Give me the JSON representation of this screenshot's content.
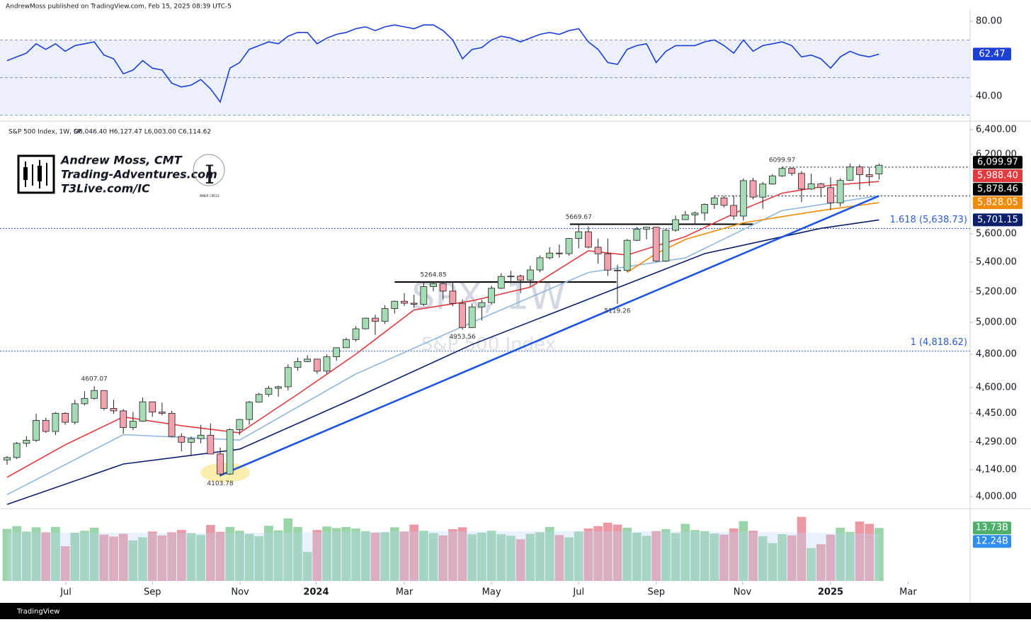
{
  "header": {
    "publisher": "AndrewMoss published on TradingView.com, Feb 15, 2025 08:39 UTC-5",
    "footer": "TradingView",
    "logo": {
      "name": "Andrew Moss, CMT",
      "site": "Trading-Adventures.com",
      "site2": "T3Live.com/IC",
      "badge": "INNER CIRCLE"
    }
  },
  "chart_data": [
    {
      "type": "line",
      "pane": "rsi",
      "xlim": [
        -0.73,
        99.4
      ],
      "ylim": [
        27.2,
        86
      ],
      "log": false,
      "yticks": [
        {
          "value": 80,
          "label": "80.00"
        },
        {
          "value": 40,
          "label": "40.00"
        }
      ],
      "levels": [
        70,
        50,
        30
      ],
      "band": [
        30,
        70
      ],
      "series": [
        {
          "color": "#1c3fd6",
          "values": [
            59,
            61,
            63,
            68,
            65,
            68,
            64,
            67,
            68,
            69,
            62,
            60,
            52,
            54,
            59,
            55,
            54,
            47,
            45,
            46,
            49,
            44,
            37,
            55,
            58,
            65,
            67,
            69,
            68,
            72,
            74,
            74,
            68,
            71,
            73,
            74,
            76,
            77,
            75,
            77,
            78,
            77,
            76,
            78,
            78,
            75,
            70,
            60,
            65,
            66,
            70,
            72,
            71,
            69,
            71,
            73,
            74,
            73,
            75,
            76,
            69,
            65,
            58,
            57,
            65,
            67,
            68,
            58,
            64,
            67,
            67,
            67,
            69,
            70,
            67,
            63,
            70,
            64,
            67,
            68,
            69,
            67,
            61,
            62,
            60,
            55,
            61,
            64,
            62,
            61,
            62.47
          ],
          "last_label": "62.47"
        }
      ]
    },
    {
      "type": "candlestick",
      "pane": "price",
      "log": true,
      "xlim": [
        -0.73,
        99.4
      ],
      "ylim": [
        3942,
        6464
      ],
      "legend": "S&P 500 Index, 1W, SP",
      "ohlc_text": "O6,046.40  H6,127.47  L6,003.00  C6,114.62",
      "watermark": "SPX, 1W",
      "watermark_subtitle": "S&P 500 Index",
      "up_color": "#a6dcb5",
      "down_color": "#f3a1ad",
      "yticks": [
        {
          "value": 4000,
          "label": "4,000.00"
        },
        {
          "value": 4140,
          "label": "4,140.00"
        },
        {
          "value": 4290,
          "label": "4,290.00"
        },
        {
          "value": 4450,
          "label": "4,450.00"
        },
        {
          "value": 4600,
          "label": "4,600.00"
        },
        {
          "value": 4800,
          "label": "4,800.00"
        },
        {
          "value": 5000,
          "label": "5,000.00"
        },
        {
          "value": 5200,
          "label": "5,200.00"
        },
        {
          "value": 5400,
          "label": "5,400.00"
        },
        {
          "value": 5600,
          "label": "5,600.00"
        },
        {
          "value": 6200,
          "label": "6,200.00"
        },
        {
          "value": 6400,
          "label": "6,400.00"
        }
      ],
      "candles": [
        [
          4192,
          4212,
          4166,
          4205
        ],
        [
          4205,
          4290,
          4196,
          4282
        ],
        [
          4282,
          4322,
          4263,
          4299
        ],
        [
          4299,
          4448,
          4290,
          4410
        ],
        [
          4410,
          4425,
          4340,
          4348
        ],
        [
          4348,
          4458,
          4328,
          4450
        ],
        [
          4450,
          4456,
          4385,
          4399
        ],
        [
          4399,
          4527,
          4387,
          4505
        ],
        [
          4505,
          4578,
          4495,
          4536
        ],
        [
          4536,
          4607.07,
          4528,
          4582
        ],
        [
          4582,
          4584,
          4467,
          4478
        ],
        [
          4478,
          4528,
          4447,
          4464
        ],
        [
          4464,
          4474,
          4335,
          4370
        ],
        [
          4370,
          4458,
          4356,
          4405
        ],
        [
          4405,
          4541,
          4402,
          4516
        ],
        [
          4516,
          4518,
          4430,
          4457
        ],
        [
          4457,
          4511,
          4439,
          4450
        ],
        [
          4450,
          4465,
          4316,
          4320
        ],
        [
          4320,
          4338,
          4238,
          4288
        ],
        [
          4288,
          4320,
          4216,
          4308
        ],
        [
          4308,
          4385,
          4283,
          4327
        ],
        [
          4327,
          4393,
          4223,
          4224
        ],
        [
          4224,
          4259,
          4103.78,
          4117
        ],
        [
          4117,
          4365,
          4113,
          4358
        ],
        [
          4358,
          4418,
          4329,
          4415
        ],
        [
          4415,
          4521,
          4385,
          4514
        ],
        [
          4514,
          4568,
          4511,
          4559
        ],
        [
          4559,
          4609,
          4546,
          4595
        ],
        [
          4595,
          4610,
          4546,
          4604
        ],
        [
          4604,
          4738,
          4582,
          4719
        ],
        [
          4719,
          4778,
          4699,
          4755
        ],
        [
          4755,
          4794,
          4751,
          4770
        ],
        [
          4770,
          4772,
          4682,
          4697
        ],
        [
          4697,
          4798,
          4682,
          4784
        ],
        [
          4784,
          4842,
          4760,
          4840
        ],
        [
          4840,
          4903,
          4841,
          4891
        ],
        [
          4891,
          4976,
          4878,
          4959
        ],
        [
          4959,
          5030,
          4955,
          5027
        ],
        [
          5027,
          5049,
          4920,
          5006
        ],
        [
          5006,
          5111,
          4990,
          5089
        ],
        [
          5089,
          5141,
          5056,
          5137
        ],
        [
          5137,
          5190,
          5105,
          5124
        ],
        [
          5124,
          5180,
          5094,
          5117
        ],
        [
          5117,
          5262,
          5105,
          5234
        ],
        [
          5234,
          5264.85,
          5203,
          5254
        ],
        [
          5254,
          5263,
          5147,
          5204
        ],
        [
          5204,
          5263,
          5104,
          5123
        ],
        [
          5123,
          5149,
          4953.56,
          4967
        ],
        [
          4967,
          5123,
          4963,
          5100
        ],
        [
          5100,
          5146,
          5011,
          5128
        ],
        [
          5128,
          5240,
          5114,
          5223
        ],
        [
          5223,
          5325,
          5218,
          5303
        ],
        [
          5303,
          5341,
          5257,
          5305
        ],
        [
          5305,
          5315,
          5191,
          5278
        ],
        [
          5278,
          5375,
          5234,
          5347
        ],
        [
          5347,
          5447,
          5331,
          5431
        ],
        [
          5431,
          5505,
          5420,
          5464
        ],
        [
          5464,
          5524,
          5432,
          5460
        ],
        [
          5460,
          5570,
          5446,
          5567
        ],
        [
          5567,
          5669.67,
          5497,
          5615
        ],
        [
          5615,
          5655,
          5497,
          5505
        ],
        [
          5505,
          5566,
          5390,
          5459
        ],
        [
          5459,
          5567,
          5306,
          5346
        ],
        [
          5346,
          5383,
          5119.26,
          5344
        ],
        [
          5344,
          5563,
          5333,
          5554
        ],
        [
          5554,
          5651,
          5549,
          5634
        ],
        [
          5634,
          5651,
          5560,
          5648
        ],
        [
          5648,
          5651,
          5403,
          5408
        ],
        [
          5408,
          5636,
          5402,
          5626
        ],
        [
          5626,
          5733,
          5615,
          5703
        ],
        [
          5703,
          5767,
          5701,
          5738
        ],
        [
          5738,
          5762,
          5674,
          5751
        ],
        [
          5751,
          5823,
          5696,
          5815
        ],
        [
          5815,
          5878,
          5782,
          5864
        ],
        [
          5864,
          5879,
          5794,
          5808
        ],
        [
          5808,
          5882,
          5703,
          5729
        ],
        [
          5729,
          6012,
          5696,
          5995
        ],
        [
          5995,
          6017,
          5853,
          5870
        ],
        [
          5870,
          5985,
          5783,
          5969
        ],
        [
          5969,
          6044,
          5964,
          6032
        ],
        [
          6032,
          6099.97,
          6024,
          6090
        ],
        [
          6090,
          6098,
          6033,
          6051
        ],
        [
          6051,
          6070,
          5832,
          5931
        ],
        [
          5931,
          6049,
          5924,
          5970
        ],
        [
          5970,
          5978,
          5869,
          5942
        ],
        [
          5942,
          6021,
          5773,
          5827
        ],
        [
          5827,
          6014,
          5800,
          5997
        ],
        [
          5997,
          6128,
          5993,
          6101
        ],
        [
          6101,
          6120,
          5923,
          6041
        ],
        [
          6041,
          6101,
          5955,
          6026
        ],
        [
          6046.4,
          6127.47,
          6003,
          6114.62
        ]
      ],
      "series": [
        {
          "color": "#e03a3e",
          "x": [
            0,
            6,
            12,
            18,
            24,
            30,
            36,
            42,
            48,
            54,
            60,
            64,
            70,
            76,
            80,
            85,
            90
          ],
          "values": [
            4100,
            4274,
            4430,
            4380,
            4340,
            4560,
            4800,
            5080,
            5140,
            5230,
            5480,
            5450,
            5580,
            5780,
            5900,
            5960,
            5988.4
          ],
          "last_label": "5,988.40"
        },
        {
          "color": "#8fb8dc",
          "x": [
            0,
            12,
            24,
            36,
            48,
            60,
            70,
            80,
            90
          ],
          "values": [
            4010,
            4330,
            4300,
            4680,
            5000,
            5330,
            5430,
            5770,
            5880
          ]
        },
        {
          "color": "#0c1f6b",
          "x": [
            0,
            12,
            24,
            36,
            48,
            60,
            72,
            84,
            90
          ],
          "values": [
            3960,
            4170,
            4250,
            4540,
            4860,
            5150,
            5460,
            5640,
            5701.15
          ],
          "last_label": "5,701.15"
        },
        {
          "color": "#f08c0a",
          "x": [
            64,
            67,
            70,
            76,
            84,
            90
          ],
          "values": [
            5330,
            5460,
            5560,
            5680,
            5770,
            5828.05
          ],
          "last_label": "5,828.05"
        },
        {
          "color": "#1e55e0",
          "x": [
            22,
            90
          ],
          "values": [
            4110,
            5878.46
          ],
          "last_label": "5,878.46"
        }
      ],
      "levels": [
        {
          "value": 6099.97,
          "label": "6,099.97",
          "from": 80
        },
        {
          "value": 5878.46,
          "from": 73
        }
      ],
      "resistance": [
        {
          "value": 5669.67,
          "from": 58.1,
          "to": 77
        },
        {
          "value": 5264.85,
          "from": 40,
          "to": 62.9
        }
      ],
      "fib": [
        {
          "value": 5638.73,
          "label": "1.618 (5,638.73)"
        },
        {
          "value": 4818.62,
          "label": "1 (4,818.62)"
        }
      ],
      "annotations": [
        {
          "value": 6099.97,
          "x": 80,
          "place": "above"
        },
        {
          "value": 5669.67,
          "x": 59,
          "place": "above"
        },
        {
          "value": 5264.85,
          "x": 44,
          "place": "above"
        },
        {
          "value": 5119.26,
          "x": 63,
          "place": "below"
        },
        {
          "value": 4953.56,
          "x": 47,
          "place": "below"
        },
        {
          "value": 4607.07,
          "x": 9,
          "place": "above"
        },
        {
          "value": 4103.78,
          "x": 22,
          "place": "below"
        }
      ]
    },
    {
      "type": "bar",
      "pane": "volume",
      "xlim": [
        -0.73,
        99.4
      ],
      "ylim": [
        0,
        18
      ],
      "xticks": [
        {
          "value": 6.07,
          "label": "Jul"
        },
        {
          "value": 15,
          "label": "Sep"
        },
        {
          "value": 24.05,
          "label": "Nov"
        },
        {
          "value": 31.9,
          "label": "2024"
        },
        {
          "value": 41,
          "label": "Mar"
        },
        {
          "value": 50,
          "label": "May"
        },
        {
          "value": 59,
          "label": "Jul"
        },
        {
          "value": 67,
          "label": "Sep"
        },
        {
          "value": 75.9,
          "label": "Nov"
        },
        {
          "value": 85,
          "label": "2025"
        },
        {
          "value": 93,
          "label": "Mar"
        }
      ],
      "values": [
        13.5,
        14.2,
        12.8,
        13.9,
        12.6,
        14.0,
        9.0,
        12.5,
        13.0,
        13.8,
        12.0,
        11.5,
        12.2,
        10.5,
        11.3,
        12.8,
        11.8,
        12.6,
        13.2,
        12.4,
        11.9,
        14.5,
        12.7,
        14.0,
        13.0,
        12.2,
        11.6,
        14.3,
        13.1,
        16.2,
        14.0,
        7.5,
        13.2,
        14.1,
        13.7,
        14.0,
        13.6,
        12.9,
        12.5,
        12.6,
        13.9,
        12.8,
        14.6,
        13.0,
        12.4,
        11.8,
        13.4,
        13.9,
        12.1,
        12.5,
        13.0,
        12.1,
        11.7,
        10.8,
        12.2,
        12.6,
        14.0,
        11.9,
        11.3,
        12.8,
        13.6,
        14.2,
        15.1,
        14.6,
        13.8,
        12.5,
        11.7,
        12.9,
        13.4,
        12.4,
        14.8,
        13.2,
        12.9,
        12.3,
        12.0,
        13.6,
        15.5,
        13.0,
        11.6,
        9.8,
        12.1,
        11.8,
        16.6,
        8.5,
        9.5,
        12.0,
        13.8,
        12.7,
        15.4,
        14.8,
        13.73
      ],
      "last_label": "13.73B",
      "ma": {
        "color": "#2f8ff0",
        "x": [
          0,
          20,
          40,
          60,
          80,
          90
        ],
        "values": [
          12.6,
          12.4,
          12.8,
          12.9,
          12.6,
          12.24
        ],
        "last_label": "12.24B"
      }
    }
  ]
}
